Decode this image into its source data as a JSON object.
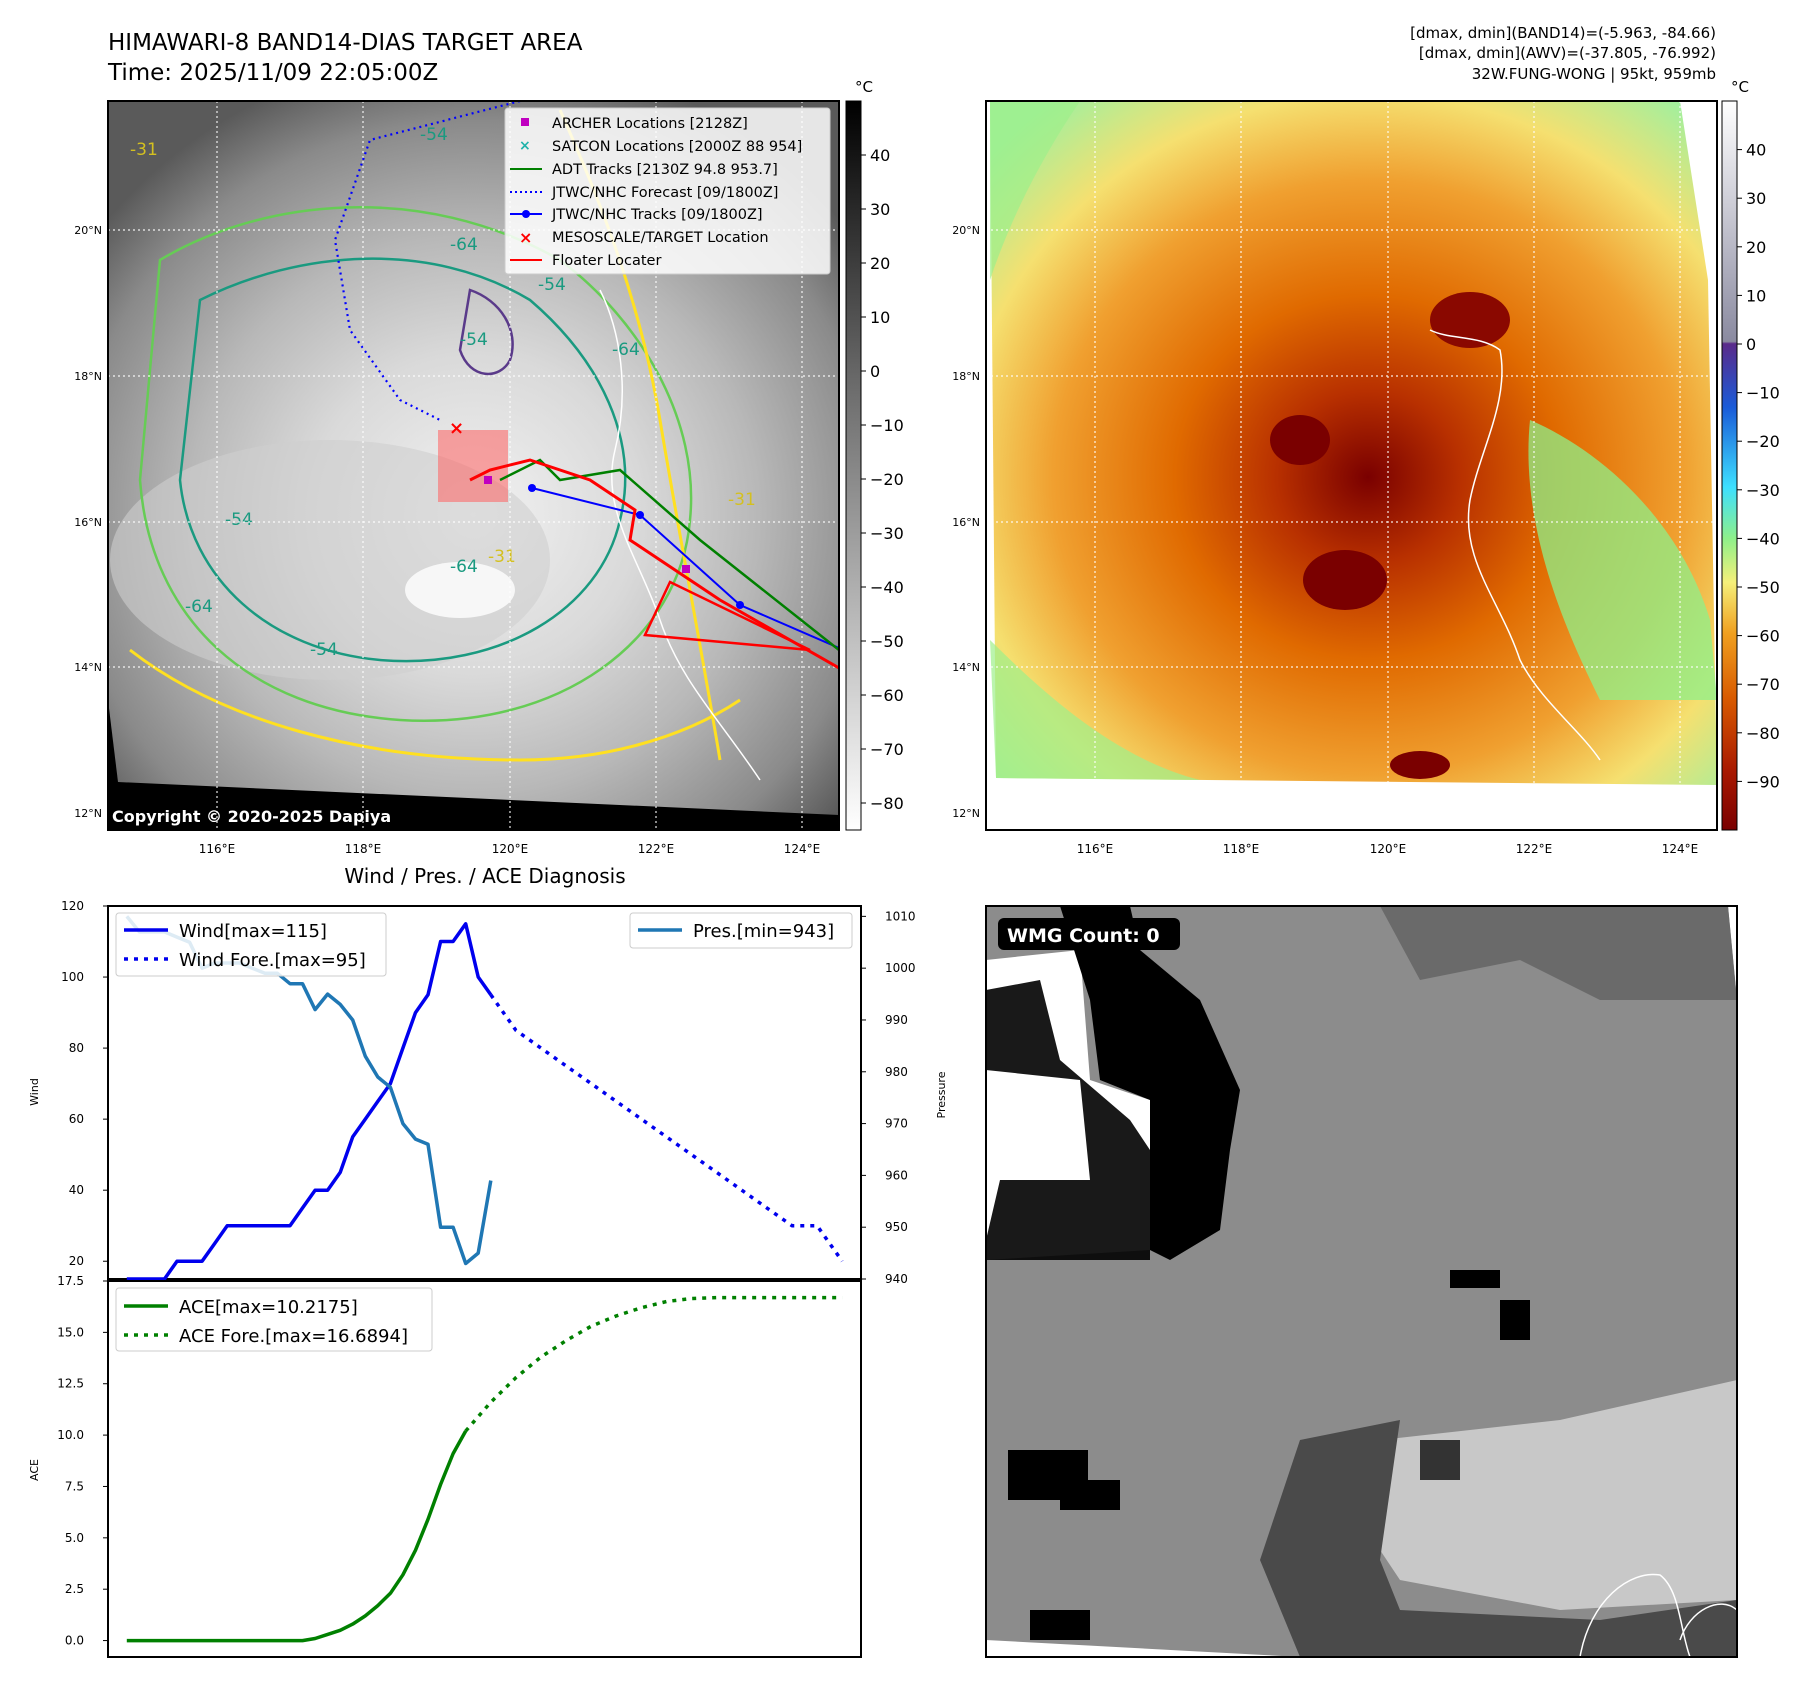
{
  "header": {
    "title_line1": "HIMAWARI-8 BAND14-DIAS TARGET AREA",
    "title_line2": "Time: 2025/11/09 22:05:00Z",
    "info_line1": "[dmax, dmin](BAND14)=(-5.963, -84.66)",
    "info_line2": "[dmax, dmin](AWV)=(-37.805, -76.992)",
    "info_line3": "32W.FUNG-WONG | 95kt, 959mb"
  },
  "map": {
    "lon_ticks": [
      "116°E",
      "118°E",
      "120°E",
      "122°E",
      "124°E"
    ],
    "lat_ticks": [
      "20°N",
      "18°N",
      "16°N",
      "14°N",
      "12°N"
    ],
    "copyright": "Copyright © 2020-2025 Dapiya",
    "contour_labels": [
      "-54",
      "-64",
      "-31",
      "-54",
      "-54",
      "-64",
      "-54",
      "-64",
      "-54",
      "-64",
      "-31",
      "-31"
    ]
  },
  "legend": {
    "items": [
      {
        "label": "ARCHER Locations [2128Z]",
        "color": "#c000c0",
        "marker": "square"
      },
      {
        "label": "SATCON Locations [2000Z 88 954]",
        "color": "#20b2aa",
        "marker": "x"
      },
      {
        "label": "ADT Tracks [2130Z 94.8 953.7]",
        "color": "#008000",
        "marker": "line"
      },
      {
        "label": "JTWC/NHC Forecast [09/1800Z]",
        "color": "#0000ff",
        "marker": "dotted"
      },
      {
        "label": "JTWC/NHC Tracks [09/1800Z]",
        "color": "#0000ff",
        "marker": "line-dot"
      },
      {
        "label": "MESOSCALE/TARGET Location",
        "color": "#ff0000",
        "marker": "x"
      },
      {
        "label": "Floater Locater",
        "color": "#ff0000",
        "marker": "line"
      }
    ]
  },
  "colorbar_gray": {
    "unit": "°C",
    "ticks": [
      "40",
      "30",
      "20",
      "10",
      "0",
      "−10",
      "−20",
      "−30",
      "−40",
      "−50",
      "−60",
      "−70",
      "−80"
    ],
    "tick_values": [
      40,
      30,
      20,
      10,
      0,
      -10,
      -20,
      -30,
      -40,
      -50,
      -60,
      -70,
      -80
    ],
    "range": [
      -85,
      50
    ]
  },
  "colorbar_color": {
    "unit": "°C",
    "ticks": [
      "40",
      "30",
      "20",
      "10",
      "0",
      "−10",
      "−20",
      "−30",
      "−40",
      "−50",
      "−60",
      "−70",
      "−80",
      "−90"
    ],
    "tick_values": [
      40,
      30,
      20,
      10,
      0,
      -10,
      -20,
      -30,
      -40,
      -50,
      -60,
      -70,
      -80,
      -90
    ],
    "range": [
      -100,
      50
    ],
    "colors": {
      "top": "#ffffff",
      "zero": "#5a2a8a",
      "blue": "#1a5bd8",
      "cyan": "#3ee0ff",
      "green": "#8ef08a",
      "yellow": "#f5f07a",
      "orange": "#f08a10",
      "red": "#c83000",
      "darkred": "#7a0000"
    }
  },
  "wmg": {
    "label": "WMG Count: 0"
  },
  "chart_data": [
    {
      "type": "line",
      "title": "Wind / Pres. / ACE Diagnosis",
      "ylabel": "Wind",
      "y2label": "Pressure",
      "ylim": [
        15,
        120
      ],
      "y2lim": [
        940,
        1012
      ],
      "yticks": [
        "120",
        "100",
        "80",
        "60",
        "40",
        "20"
      ],
      "y2ticks": [
        "1010",
        "1000",
        "990",
        "980",
        "970",
        "960",
        "950",
        "940"
      ],
      "series": [
        {
          "name": "Wind[max=115]",
          "color": "#0000ee",
          "style": "solid",
          "axis": "left",
          "values": [
            [
              0,
              15
            ],
            [
              1,
              15
            ],
            [
              2,
              15
            ],
            [
              3,
              15
            ],
            [
              4,
              20
            ],
            [
              5,
              20
            ],
            [
              6,
              20
            ],
            [
              7,
              25
            ],
            [
              8,
              30
            ],
            [
              9,
              30
            ],
            [
              10,
              30
            ],
            [
              11,
              30
            ],
            [
              12,
              30
            ],
            [
              13,
              30
            ],
            [
              14,
              35
            ],
            [
              15,
              40
            ],
            [
              16,
              40
            ],
            [
              17,
              45
            ],
            [
              18,
              55
            ],
            [
              19,
              60
            ],
            [
              20,
              65
            ],
            [
              21,
              70
            ],
            [
              22,
              80
            ],
            [
              23,
              90
            ],
            [
              24,
              95
            ],
            [
              25,
              110
            ],
            [
              26,
              110
            ],
            [
              27,
              115
            ],
            [
              28,
              100
            ],
            [
              29,
              95
            ]
          ]
        },
        {
          "name": "Wind Fore.[max=95]",
          "color": "#0000ee",
          "style": "dotted",
          "axis": "left",
          "values": [
            [
              29,
              95
            ],
            [
              31,
              85
            ],
            [
              33,
              80
            ],
            [
              35,
              75
            ],
            [
              37,
              70
            ],
            [
              39,
              65
            ],
            [
              41,
              60
            ],
            [
              43,
              55
            ],
            [
              45,
              50
            ],
            [
              47,
              45
            ],
            [
              49,
              40
            ],
            [
              51,
              35
            ],
            [
              53,
              30
            ],
            [
              55,
              30
            ],
            [
              57,
              20
            ]
          ]
        },
        {
          "name": "Pres.[min=943]",
          "color": "#1f77b4",
          "style": "solid",
          "axis": "right",
          "values": [
            [
              0,
              1010
            ],
            [
              1,
              1007
            ],
            [
              2,
              1007
            ],
            [
              3,
              1007
            ],
            [
              4,
              1006
            ],
            [
              5,
              1005
            ],
            [
              6,
              1000
            ],
            [
              7,
              1001
            ],
            [
              8,
              1001
            ],
            [
              9,
              1001
            ],
            [
              10,
              1000
            ],
            [
              11,
              999
            ],
            [
              12,
              999
            ],
            [
              13,
              997
            ],
            [
              14,
              997
            ],
            [
              15,
              992
            ],
            [
              16,
              995
            ],
            [
              17,
              993
            ],
            [
              18,
              990
            ],
            [
              19,
              983
            ],
            [
              20,
              979
            ],
            [
              21,
              977
            ],
            [
              22,
              970
            ],
            [
              23,
              967
            ],
            [
              24,
              966
            ],
            [
              25,
              950
            ],
            [
              26,
              950
            ],
            [
              27,
              943
            ],
            [
              28,
              945
            ],
            [
              29,
              959
            ]
          ]
        }
      ]
    },
    {
      "type": "line",
      "ylabel": "ACE",
      "ylim": [
        -0.8,
        17.5
      ],
      "yticks": [
        "17.5",
        "15.0",
        "12.5",
        "10.0",
        "7.5",
        "5.0",
        "2.5",
        "0.0"
      ],
      "series": [
        {
          "name": "ACE[max=10.2175]",
          "color": "#008000",
          "style": "solid",
          "values": [
            [
              0,
              0
            ],
            [
              5,
              0
            ],
            [
              10,
              0
            ],
            [
              14,
              0
            ],
            [
              15,
              0.1
            ],
            [
              16,
              0.3
            ],
            [
              17,
              0.5
            ],
            [
              18,
              0.8
            ],
            [
              19,
              1.2
            ],
            [
              20,
              1.7
            ],
            [
              21,
              2.3
            ],
            [
              22,
              3.2
            ],
            [
              23,
              4.4
            ],
            [
              24,
              5.9
            ],
            [
              25,
              7.6
            ],
            [
              26,
              9.1
            ],
            [
              27,
              10.2
            ]
          ]
        },
        {
          "name": "ACE Fore.[max=16.6894]",
          "color": "#008000",
          "style": "dotted",
          "values": [
            [
              27,
              10.2
            ],
            [
              29,
              11.6
            ],
            [
              31,
              12.8
            ],
            [
              33,
              13.8
            ],
            [
              35,
              14.6
            ],
            [
              37,
              15.3
            ],
            [
              39,
              15.8
            ],
            [
              41,
              16.2
            ],
            [
              43,
              16.5
            ],
            [
              45,
              16.65
            ],
            [
              47,
              16.69
            ],
            [
              49,
              16.69
            ],
            [
              51,
              16.69
            ],
            [
              53,
              16.69
            ],
            [
              55,
              16.69
            ],
            [
              57,
              16.69
            ]
          ]
        }
      ]
    }
  ]
}
